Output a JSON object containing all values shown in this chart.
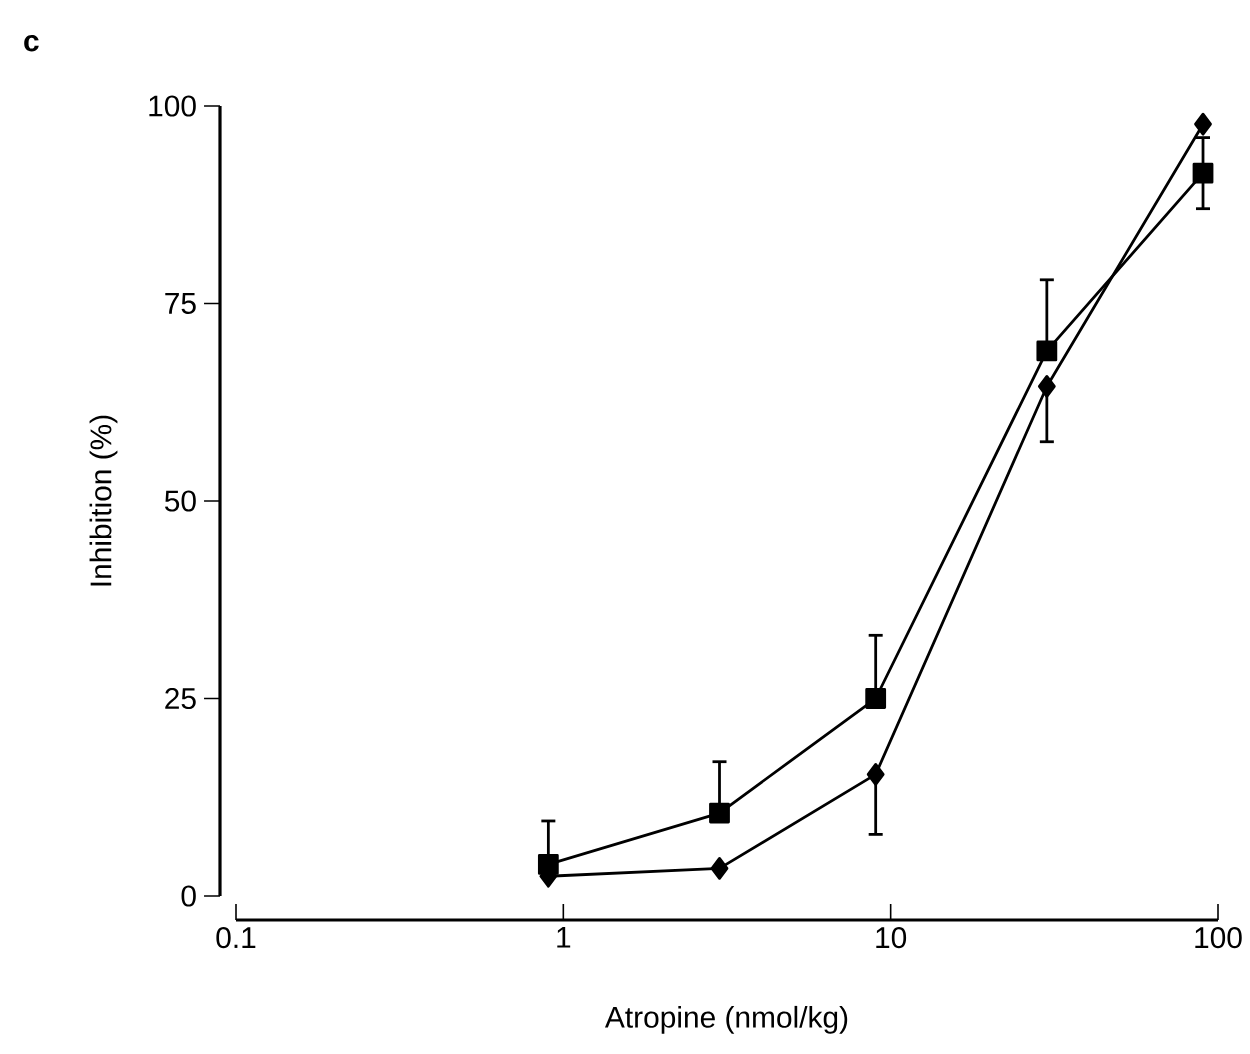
{
  "chart_data": {
    "type": "line",
    "xlabel": "Atropine (nmol/kg)",
    "ylabel": "Inhibition (%)",
    "annotations": [
      "c"
    ],
    "log": "x",
    "xlim": [
      0.1,
      100
    ],
    "xticks": [
      0.1,
      1,
      10,
      100
    ],
    "ylim": [
      0,
      100
    ],
    "yticks": [
      0,
      25,
      50,
      75,
      100
    ],
    "line_style": "solid",
    "series": [
      {
        "color": "#000000",
        "marker": "square",
        "x": [
          0.9,
          3,
          9,
          30,
          90
        ],
        "values": [
          4,
          10.5,
          25,
          69,
          91.5
        ],
        "errors": [
          [
            4,
            9.5
          ],
          [
            10.5,
            17
          ],
          [
            25,
            33
          ],
          [
            69,
            78
          ],
          [
            87,
            96
          ]
        ]
      },
      {
        "color": "#000000",
        "marker": "diamond",
        "x": [
          0.9,
          3,
          9,
          30,
          90
        ],
        "values": [
          2.5,
          3.5,
          15.4,
          64.5,
          97.7
        ],
        "errors": [
          null,
          null,
          [
            7.8,
            15.4
          ],
          [
            57.5,
            64.5
          ],
          null
        ]
      }
    ]
  }
}
